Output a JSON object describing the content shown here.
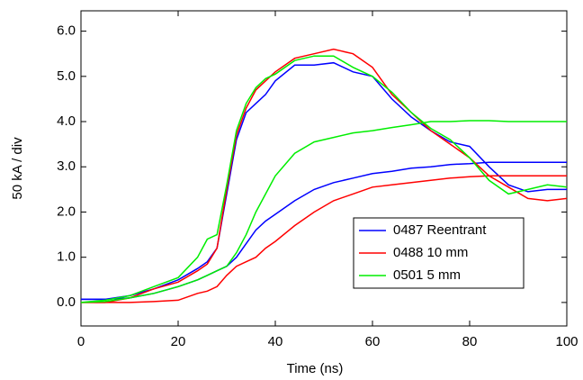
{
  "chart_data": {
    "type": "line",
    "xlabel": "Time (ns)",
    "ylabel": "50 kA / div",
    "x": [
      0,
      5,
      10,
      15,
      20,
      24,
      26,
      28,
      30,
      32,
      34,
      36,
      38,
      40,
      44,
      48,
      52,
      56,
      60,
      64,
      68,
      72,
      76,
      80,
      84,
      88,
      92,
      96,
      100
    ],
    "series": [
      {
        "name": "0487 Reentrant",
        "color": "#0000ff",
        "values": [
          [
            0.07,
            0.07,
            0.15,
            0.3,
            0.5,
            0.75,
            0.9,
            1.2,
            2.4,
            3.6,
            4.2,
            4.4,
            4.6,
            4.9,
            5.25,
            5.25,
            5.3,
            5.1,
            5.0,
            4.5,
            4.1,
            3.8,
            3.55,
            3.45,
            3.0,
            2.6,
            2.45,
            2.5,
            2.5
          ],
          [
            0.07,
            0.07,
            0.1,
            0.2,
            0.35,
            0.5,
            0.6,
            0.7,
            0.8,
            1.0,
            1.3,
            1.6,
            1.8,
            1.95,
            2.25,
            2.5,
            2.65,
            2.75,
            2.85,
            2.9,
            2.97,
            3.0,
            3.05,
            3.07,
            3.1,
            3.1,
            3.1,
            3.1,
            3.1
          ]
        ]
      },
      {
        "name": "0488 10 mm",
        "color": "#ff0000",
        "values": [
          [
            0,
            0,
            0.1,
            0.3,
            0.45,
            0.7,
            0.85,
            1.2,
            2.5,
            3.7,
            4.3,
            4.7,
            4.9,
            5.1,
            5.4,
            5.5,
            5.6,
            5.5,
            5.2,
            4.6,
            4.2,
            3.8,
            3.5,
            3.2,
            2.8,
            2.55,
            2.3,
            2.25,
            2.3
          ],
          [
            0,
            0,
            0,
            0.02,
            0.05,
            0.2,
            0.25,
            0.35,
            0.6,
            0.8,
            0.9,
            1.0,
            1.2,
            1.35,
            1.7,
            2.0,
            2.25,
            2.4,
            2.55,
            2.6,
            2.65,
            2.7,
            2.75,
            2.78,
            2.8,
            2.8,
            2.8,
            2.8,
            2.8
          ]
        ]
      },
      {
        "name": "0501 5 mm",
        "color": "#00ee00",
        "values": [
          [
            0,
            0.05,
            0.15,
            0.35,
            0.55,
            1.0,
            1.4,
            1.5,
            2.6,
            3.8,
            4.4,
            4.75,
            4.95,
            5.05,
            5.35,
            5.45,
            5.45,
            5.2,
            5.0,
            4.65,
            4.2,
            3.85,
            3.6,
            3.2,
            2.7,
            2.4,
            2.5,
            2.6,
            2.55
          ],
          [
            0,
            0.02,
            0.1,
            0.2,
            0.35,
            0.5,
            0.6,
            0.7,
            0.8,
            1.1,
            1.5,
            2.0,
            2.4,
            2.8,
            3.3,
            3.55,
            3.65,
            3.75,
            3.8,
            3.87,
            3.93,
            4.0,
            4.0,
            4.02,
            4.02,
            4.0,
            4.0,
            4.0,
            4.0
          ]
        ]
      }
    ],
    "xlim": [
      0,
      100
    ],
    "xticks": [
      0,
      20,
      40,
      60,
      80,
      100
    ],
    "ylim": [
      -0.52,
      6.45
    ],
    "yticks": [
      {
        "value": 0,
        "label": "0.0"
      },
      {
        "value": 1,
        "label": "1.0"
      },
      {
        "value": 2,
        "label": "2.0"
      },
      {
        "value": 3,
        "label": "3.0"
      },
      {
        "value": 4,
        "label": "4.0"
      },
      {
        "value": 5,
        "label": "5.0"
      },
      {
        "value": 6,
        "label": "6.0"
      }
    ],
    "legend": "lower right"
  }
}
